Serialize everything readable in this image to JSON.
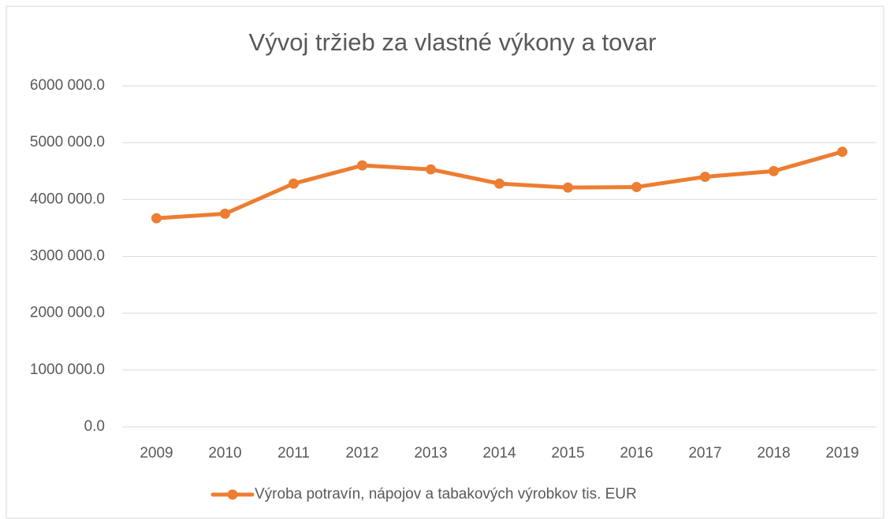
{
  "chart_data": {
    "type": "line",
    "title": "Vývoj tržieb za vlastné výkony a tovar",
    "categories": [
      "2009",
      "2010",
      "2011",
      "2012",
      "2013",
      "2014",
      "2015",
      "2016",
      "2017",
      "2018",
      "2019"
    ],
    "series": [
      {
        "name": "Výroba potravín, nápojov a tabakových výrobkov tis. EUR",
        "color": "#ed7d31",
        "values": [
          3670000,
          3750000,
          4280000,
          4600000,
          4530000,
          4280000,
          4210000,
          4220000,
          4400000,
          4500000,
          4840000
        ]
      }
    ],
    "ylim": [
      0,
      6000000
    ],
    "yticks": [
      {
        "value": 0,
        "label": "0.0"
      },
      {
        "value": 1000000,
        "label": "1000 000.0"
      },
      {
        "value": 2000000,
        "label": "2000 000.0"
      },
      {
        "value": 3000000,
        "label": "3000 000.0"
      },
      {
        "value": 4000000,
        "label": "4000 000.0"
      },
      {
        "value": 5000000,
        "label": "5000 000.0"
      },
      {
        "value": 6000000,
        "label": "6000 000.0"
      }
    ],
    "grid": true,
    "legend": "bottom"
  }
}
